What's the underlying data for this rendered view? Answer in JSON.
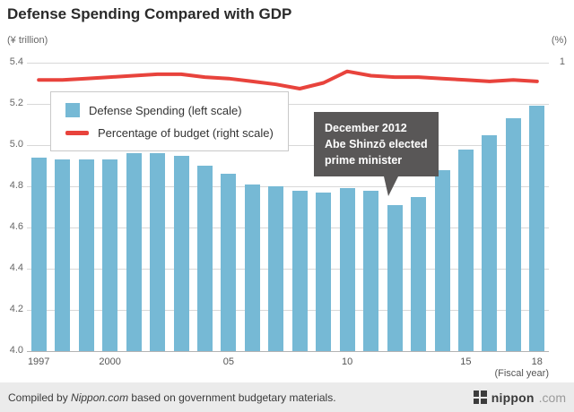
{
  "page": {
    "footer": {
      "credit_prefix": "Compiled by ",
      "credit_source": "Nippon.com",
      "credit_suffix": " based on government budgetary materials.",
      "logo_name": "nippon",
      "logo_tld": ".com"
    }
  },
  "chart_data": {
    "type": "bar+line",
    "title": "Defense Spending Compared with GDP",
    "left_axis": {
      "label": "(¥ trillion)",
      "min": 4.0,
      "max": 5.4,
      "ticks": [
        "5.4",
        "5.2",
        "5.0",
        "4.8",
        "4.6",
        "4.4",
        "4.2",
        "4.0"
      ]
    },
    "right_axis": {
      "label": "(%)",
      "ticks": [
        "1"
      ]
    },
    "x_axis": {
      "label": "(Fiscal year)",
      "tick_labels": [
        {
          "year": 1997,
          "label": "1997"
        },
        {
          "year": 2000,
          "label": "2000"
        },
        {
          "year": 2005,
          "label": "05"
        },
        {
          "year": 2010,
          "label": "10"
        },
        {
          "year": 2015,
          "label": "15"
        },
        {
          "year": 2018,
          "label": "18"
        }
      ]
    },
    "years": [
      1997,
      1998,
      1999,
      2000,
      2001,
      2002,
      2003,
      2004,
      2005,
      2006,
      2007,
      2008,
      2009,
      2010,
      2011,
      2012,
      2013,
      2014,
      2015,
      2016,
      2017,
      2018
    ],
    "series": [
      {
        "name": "Defense Spending (left scale)",
        "type": "bar",
        "color": "#76b9d5",
        "unit": "¥ trillion",
        "values": [
          4.94,
          4.93,
          4.93,
          4.93,
          4.96,
          4.96,
          4.95,
          4.9,
          4.86,
          4.81,
          4.8,
          4.78,
          4.77,
          4.79,
          4.78,
          4.71,
          4.75,
          4.88,
          4.98,
          5.05,
          5.13,
          5.19
        ]
      },
      {
        "name": "Percentage of budget (right scale)",
        "type": "line",
        "color": "#e8433c",
        "unit": "%",
        "values_pct": [
          0.94,
          0.94,
          0.945,
          0.95,
          0.955,
          0.96,
          0.96,
          0.95,
          0.945,
          0.935,
          0.925,
          0.91,
          0.93,
          0.97,
          0.955,
          0.95,
          0.95,
          0.945,
          0.94,
          0.935,
          0.94,
          0.935
        ]
      }
    ],
    "annotation": {
      "bg": "#595757",
      "lines": [
        "December 2012",
        "Abe Shinzō elected",
        "prime minister"
      ]
    },
    "grid": true,
    "legend_position": "upper-left-inside"
  }
}
